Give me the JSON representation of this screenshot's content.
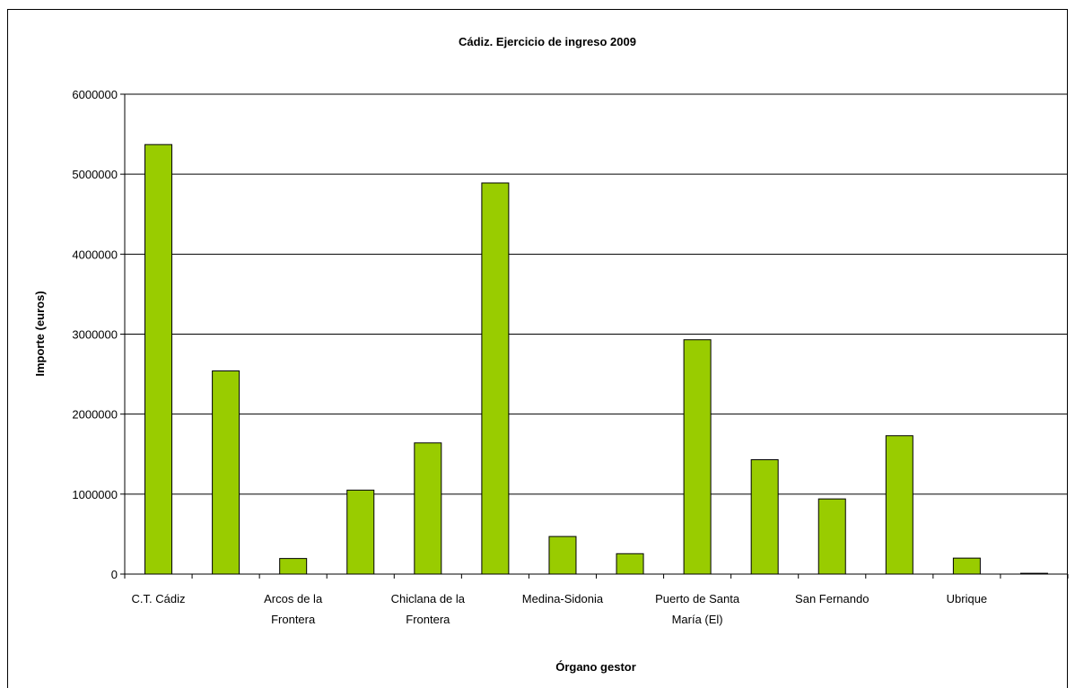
{
  "chart_data": {
    "type": "bar",
    "title": "Cádiz. Ejercicio de ingreso 2009",
    "xlabel": "Órgano gestor",
    "ylabel": "Importe (euros)",
    "ylim": [
      0,
      6000000
    ],
    "yticks": [
      0,
      1000000,
      2000000,
      3000000,
      4000000,
      5000000,
      6000000
    ],
    "ytick_labels": [
      "0",
      "1000000",
      "2000000",
      "3000000",
      "4000000",
      "5000000",
      "6000000"
    ],
    "categories": [
      "C.T. Cádiz",
      "",
      "Arcos de la Frontera",
      "",
      "Chiclana de la Frontera",
      "",
      "Medina-Sidonia",
      "",
      "Puerto de Santa María (El)",
      "",
      "San Fernando",
      "",
      "Ubrique",
      ""
    ],
    "visible_category_labels": [
      {
        "index": 0,
        "lines": [
          "C.T. Cádiz"
        ]
      },
      {
        "index": 2,
        "lines": [
          "Arcos de la",
          "Frontera"
        ]
      },
      {
        "index": 4,
        "lines": [
          "Chiclana de la",
          "Frontera"
        ]
      },
      {
        "index": 6,
        "lines": [
          "Medina-Sidonia"
        ]
      },
      {
        "index": 8,
        "lines": [
          "Puerto de Santa",
          "María (El)"
        ]
      },
      {
        "index": 10,
        "lines": [
          "San Fernando"
        ]
      },
      {
        "index": 12,
        "lines": [
          "Ubrique"
        ]
      }
    ],
    "values": [
      5370000,
      2540000,
      195000,
      1050000,
      1640000,
      4890000,
      470000,
      255000,
      2930000,
      1430000,
      940000,
      1730000,
      200000,
      10000
    ],
    "bar_color": "#99cc00",
    "bar_stroke": "#000000",
    "grid": true,
    "legend": "none"
  }
}
